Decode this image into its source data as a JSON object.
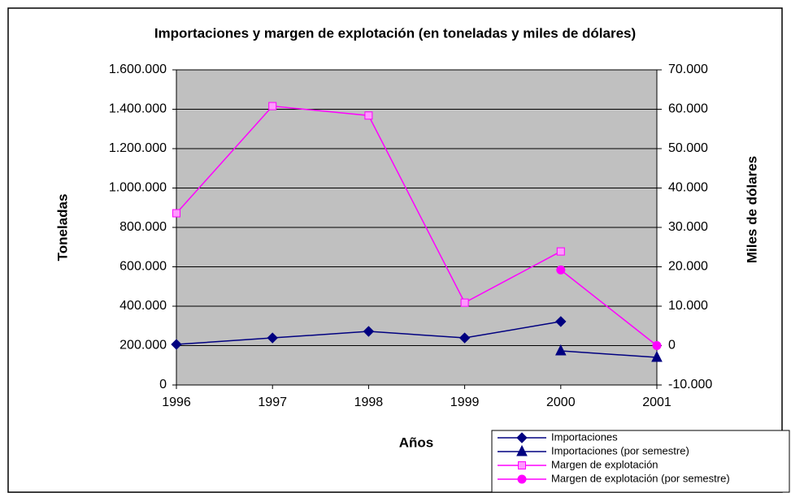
{
  "chart_data": {
    "type": "line",
    "title": "Importaciones y margen de explotación (en toneladas y miles de dólares)",
    "xlabel": "Años",
    "ylabel": "Toneladas",
    "y2label": "Miles de dólares",
    "x": [
      1996,
      1997,
      1998,
      1999,
      2000,
      2001
    ],
    "xlim": [
      1996,
      2001
    ],
    "xticks": [
      1996,
      1997,
      1998,
      1999,
      2000,
      2001
    ],
    "ylim": [
      0,
      1600000
    ],
    "yticks": [
      0,
      {
        "value": 200000,
        "label": "200.000"
      },
      {
        "value": 400000,
        "label": "400.000"
      },
      {
        "value": 600000,
        "label": "600.000"
      },
      {
        "value": 800000,
        "label": "800.000"
      },
      {
        "value": 1000000,
        "label": "1.000.000"
      },
      {
        "value": 1200000,
        "label": "1.200.000"
      },
      {
        "value": 1400000,
        "label": "1.400.000"
      },
      {
        "value": 1600000,
        "label": "1.600.000"
      }
    ],
    "y2lim": [
      -10000,
      70000
    ],
    "y2ticks": [
      {
        "value": -10000,
        "label": "-10.000"
      },
      0,
      {
        "value": 10000,
        "label": "10.000"
      },
      {
        "value": 20000,
        "label": "20.000"
      },
      {
        "value": 30000,
        "label": "30.000"
      },
      {
        "value": 40000,
        "label": "40.000"
      },
      {
        "value": 50000,
        "label": "50.000"
      },
      {
        "value": 60000,
        "label": "60.000"
      },
      {
        "value": 70000,
        "label": "70.000"
      }
    ],
    "grid": true,
    "legend": "lower right",
    "series": [
      {
        "name": "Importaciones",
        "color": "#000080",
        "marker": "diamond",
        "values": [
          206000,
          239000,
          272000,
          239000,
          322000,
          null
        ]
      },
      {
        "name": "Importaciones (por semestre)",
        "color": "#000080",
        "marker": "triangle",
        "values": [
          null,
          null,
          null,
          null,
          173000,
          140000
        ]
      },
      {
        "name": "Margen de explotación",
        "color": "#ff00ff",
        "marker": "square",
        "axis": "y2",
        "values": [
          33600,
          60800,
          58400,
          10900,
          23900,
          null
        ]
      },
      {
        "name": "Margen de explotación (por semestre)",
        "color": "#ff00ff",
        "marker": "circle",
        "axis": "y2",
        "values": [
          null,
          null,
          null,
          null,
          19200,
          0
        ]
      }
    ]
  }
}
